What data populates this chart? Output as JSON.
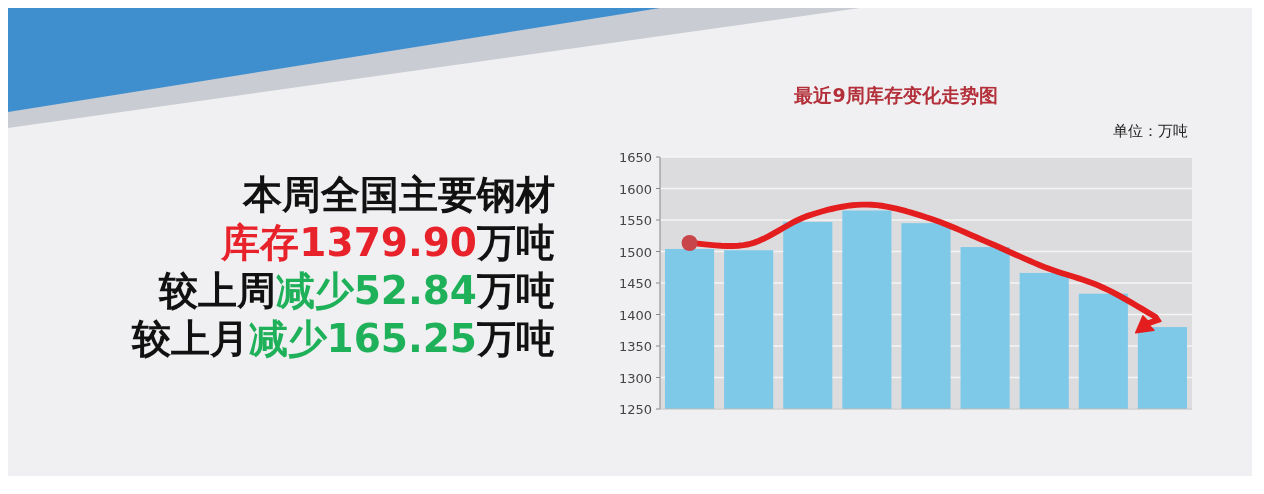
{
  "chart_data": [
    {
      "type": "other",
      "annotations": [
        "本周全国主要钢材",
        "库存1379.90万吨",
        "较上周减少52.84万吨",
        "较上月减少165.25万吨"
      ]
    },
    {
      "type": "bar",
      "title": "最近9周库存变化走势图",
      "ylabel": "单位：万吨",
      "categories": [
        null,
        null,
        null,
        null,
        null,
        null,
        null,
        null,
        null
      ],
      "values": [
        1504,
        1502,
        1547,
        1565,
        1545,
        1507,
        1466,
        1433,
        1380
      ],
      "color": "#7ec8e8",
      "ylim": [
        1250,
        1650
      ],
      "yticks": [
        1250,
        1300,
        1350,
        1400,
        1450,
        1500,
        1550,
        1600,
        1650
      ],
      "grid": "y"
    }
  ]
}
